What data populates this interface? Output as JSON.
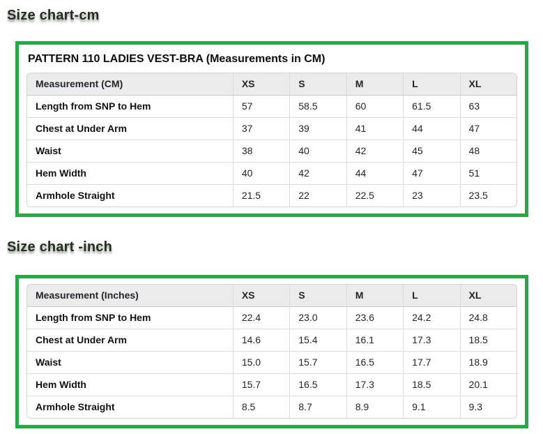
{
  "colors": {
    "accent_green": "#28a745",
    "header_bg": "#ebebeb",
    "table_border": "#d4d4d4",
    "text": "#212529"
  },
  "cm": {
    "heading": "Size chart-cm",
    "table": {
      "title": "PATTERN 110 LADIES VEST-BRA (Measurements in CM)",
      "headers": [
        "Measurement (CM)",
        "XS",
        "S",
        "M",
        "L",
        "XL"
      ],
      "rows": [
        [
          "Length from SNP to Hem",
          "57",
          "58.5",
          "60",
          "61.5",
          "63"
        ],
        [
          "Chest at Under Arm",
          "37",
          "39",
          "41",
          "44",
          "47"
        ],
        [
          "Waist",
          "38",
          "40",
          "42",
          "45",
          "48"
        ],
        [
          "Hem Width",
          "40",
          "42",
          "44",
          "47",
          "51"
        ],
        [
          "Armhole Straight",
          "21.5",
          "22",
          "22.5",
          "23",
          "23.5"
        ]
      ]
    }
  },
  "inch": {
    "heading": "Size chart -inch",
    "table": {
      "headers": [
        "Measurement (Inches)",
        "XS",
        "S",
        "M",
        "L",
        "XL"
      ],
      "rows": [
        [
          "Length from SNP to Hem",
          "22.4",
          "23.0",
          "23.6",
          "24.2",
          "24.8"
        ],
        [
          "Chest at Under Arm",
          "14.6",
          "15.4",
          "16.1",
          "17.3",
          "18.5"
        ],
        [
          "Waist",
          "15.0",
          "15.7",
          "16.5",
          "17.7",
          "18.9"
        ],
        [
          "Hem Width",
          "15.7",
          "16.5",
          "17.3",
          "18.5",
          "20.1"
        ],
        [
          "Armhole Straight",
          "8.5",
          "8.7",
          "8.9",
          "9.1",
          "9.3"
        ]
      ]
    }
  }
}
